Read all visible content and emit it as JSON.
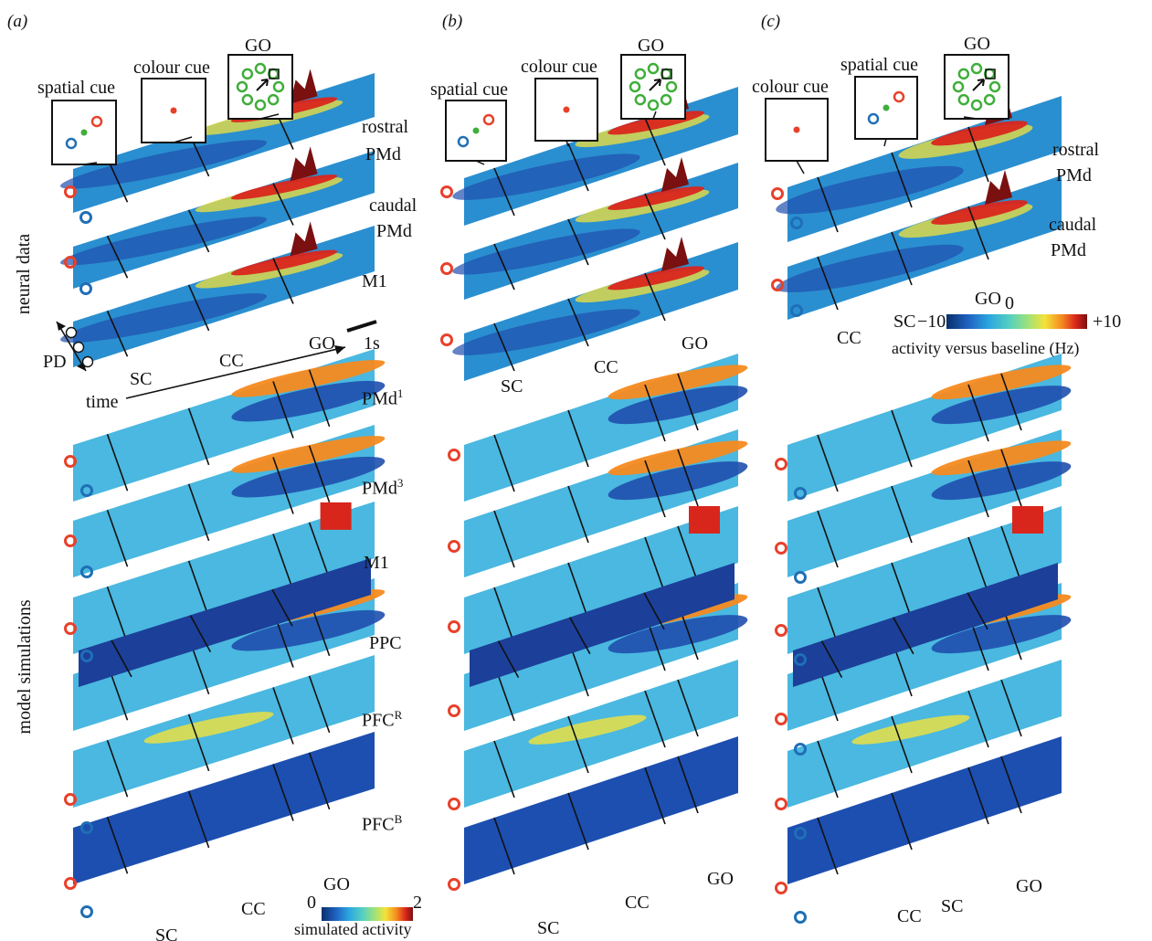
{
  "panels": [
    {
      "letter": "(a)",
      "cues": [
        "spatial cue",
        "colour cue",
        "GO"
      ],
      "neural_areas": [
        [
          "rostral",
          "PMd"
        ],
        [
          "caudal",
          "PMd"
        ],
        [
          "M1"
        ]
      ],
      "events_neural": [
        "SC",
        "CC",
        "GO"
      ],
      "pd_label": "PD",
      "time_label": "time",
      "scale_label": "1s",
      "model_areas": [
        "PMd",
        "PMd",
        "M1",
        "PPC",
        "PFC",
        "PFC"
      ],
      "model_area_sup": [
        "1",
        "3",
        "",
        "",
        "R",
        "B"
      ],
      "events_model": [
        "SC",
        "CC",
        "GO"
      ],
      "colorbar": {
        "min": "0",
        "max": "2",
        "caption": "simulated activity"
      }
    },
    {
      "letter": "(b)",
      "cues": [
        "spatial cue",
        "colour cue",
        "GO"
      ],
      "events_neural": [
        "SC",
        "CC",
        "GO"
      ],
      "events_model": [
        "SC",
        "CC",
        "GO"
      ]
    },
    {
      "letter": "(c)",
      "cues": [
        "colour cue",
        "spatial cue",
        "GO"
      ],
      "neural_areas": [
        [
          "rostral",
          "PMd"
        ],
        [
          "caudal",
          "PMd"
        ]
      ],
      "events_neural": [
        "SC",
        "CC",
        "GO"
      ],
      "colorbar": {
        "min": "−10",
        "mid": "0",
        "max": "+10",
        "caption": "activity versus baseline (Hz)"
      },
      "events_model": [
        "CC",
        "SC",
        "GO"
      ]
    }
  ],
  "row_labels": {
    "neural": "neural data",
    "model": "model simulations"
  },
  "colors": {
    "target_red": "#e8412b",
    "target_blue": "#1f6fb6",
    "target_green": "#3fae3a",
    "jet": [
      "#08306b",
      "#1f5fbf",
      "#2ca6e0",
      "#56d0c0",
      "#9fe27a",
      "#f4e23a",
      "#f58a1f",
      "#d9261c",
      "#7a1010"
    ]
  }
}
